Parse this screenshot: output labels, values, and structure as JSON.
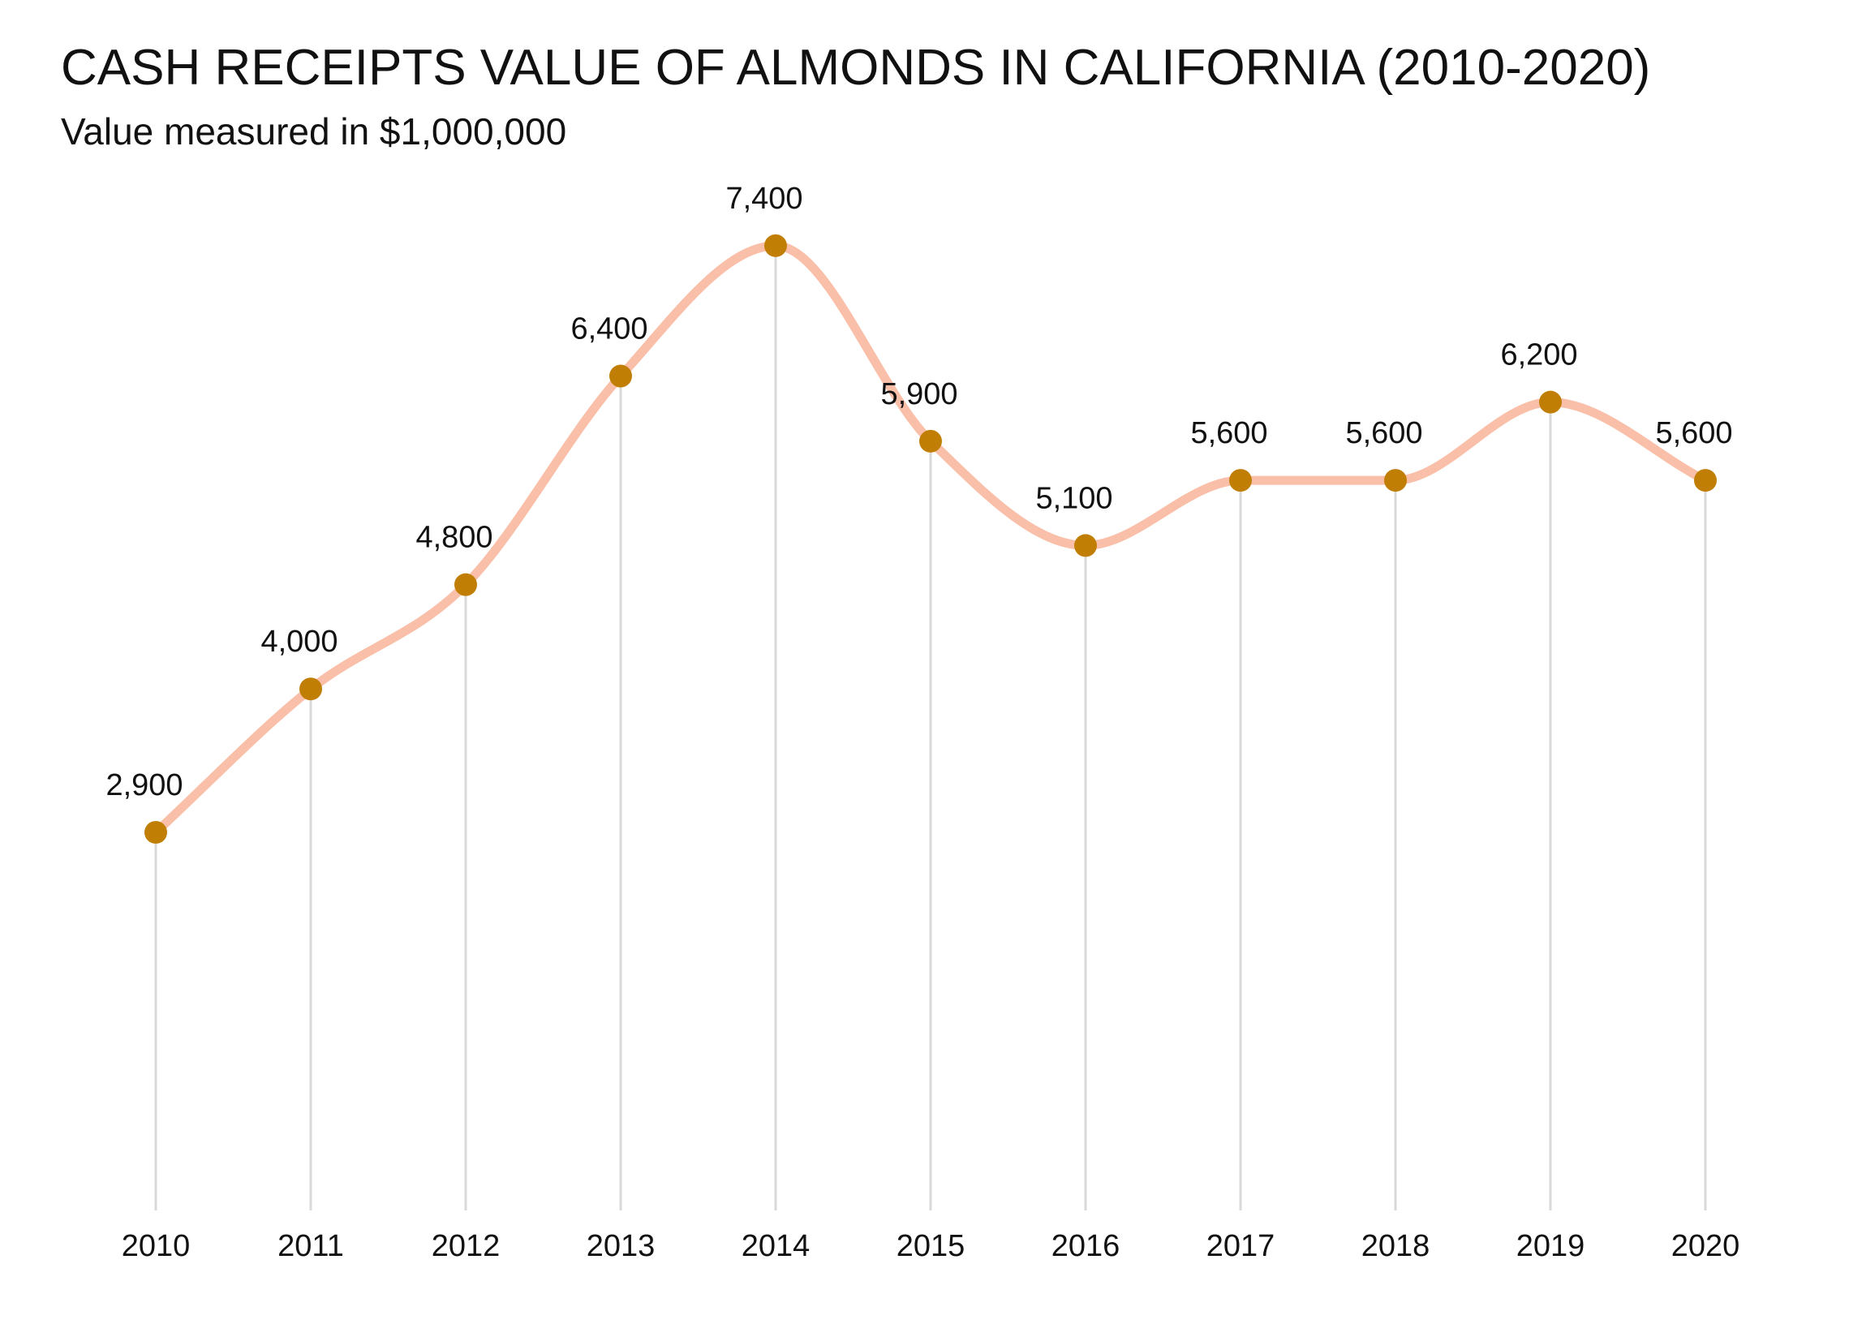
{
  "title": "CASH RECEIPTS VALUE OF ALMONDS IN CALIFORNIA (2010-2020)",
  "subtitle": "Value measured in $1,000,000",
  "chart_data": {
    "type": "line",
    "title": "CASH RECEIPTS VALUE OF ALMONDS IN CALIFORNIA (2010-2020)",
    "subtitle": "Value measured in $1,000,000",
    "xlabel": "",
    "ylabel": "",
    "categories": [
      "2010",
      "2011",
      "2012",
      "2013",
      "2014",
      "2015",
      "2016",
      "2017",
      "2018",
      "2019",
      "2020"
    ],
    "values": [
      2900,
      4000,
      4800,
      6400,
      7400,
      5900,
      5100,
      5600,
      5600,
      6200,
      5600
    ],
    "data_labels": [
      "2,900",
      "4,000",
      "4,800",
      "6,400",
      "7,400",
      "5,900",
      "5,100",
      "5,600",
      "5,600",
      "6,200",
      "5,600"
    ],
    "ylim": [
      0,
      8000
    ],
    "grid": false,
    "drop_lines": true,
    "smooth": true,
    "line_color": "#F9BFA8",
    "marker_color": "#C17E05",
    "drop_line_color": "#D9D9D9"
  }
}
